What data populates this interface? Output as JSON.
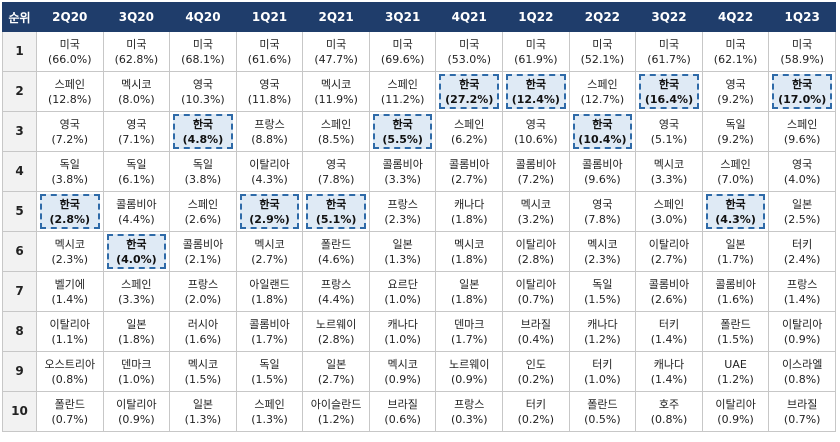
{
  "table": {
    "rank_header": "순위",
    "columns": [
      "2Q20",
      "3Q20",
      "4Q20",
      "1Q21",
      "2Q21",
      "3Q21",
      "4Q21",
      "1Q22",
      "2Q22",
      "3Q22",
      "4Q22",
      "1Q23"
    ],
    "highlight_country": "한국",
    "highlight_color": "#2e6aa8",
    "header_color": "#1f3d6b",
    "rows": [
      {
        "rank": "1",
        "cells": [
          [
            "미국",
            "(66.0%)"
          ],
          [
            "미국",
            "(62.8%)"
          ],
          [
            "미국",
            "(68.1%)"
          ],
          [
            "미국",
            "(61.6%)"
          ],
          [
            "미국",
            "(47.7%)"
          ],
          [
            "미국",
            "(69.6%)"
          ],
          [
            "미국",
            "(53.0%)"
          ],
          [
            "미국",
            "(61.9%)"
          ],
          [
            "미국",
            "(52.1%)"
          ],
          [
            "미국",
            "(61.7%)"
          ],
          [
            "미국",
            "(62.1%)"
          ],
          [
            "미국",
            "(58.9%)"
          ]
        ]
      },
      {
        "rank": "2",
        "cells": [
          [
            "스페인",
            "(12.8%)"
          ],
          [
            "멕시코",
            "(8.0%)"
          ],
          [
            "영국",
            "(10.3%)"
          ],
          [
            "영국",
            "(11.8%)"
          ],
          [
            "멕시코",
            "(11.9%)"
          ],
          [
            "스페인",
            "(11.2%)"
          ],
          [
            "한국",
            "(27.2%)"
          ],
          [
            "한국",
            "(12.4%)"
          ],
          [
            "스페인",
            "(12.7%)"
          ],
          [
            "한국",
            "(16.4%)"
          ],
          [
            "영국",
            "(9.2%)"
          ],
          [
            "한국",
            "(17.0%)"
          ]
        ]
      },
      {
        "rank": "3",
        "cells": [
          [
            "영국",
            "(7.2%)"
          ],
          [
            "영국",
            "(7.1%)"
          ],
          [
            "한국",
            "(4.8%)"
          ],
          [
            "프랑스",
            "(8.8%)"
          ],
          [
            "스페인",
            "(8.5%)"
          ],
          [
            "한국",
            "(5.5%)"
          ],
          [
            "스페인",
            "(6.2%)"
          ],
          [
            "영국",
            "(10.6%)"
          ],
          [
            "한국",
            "(10.4%)"
          ],
          [
            "영국",
            "(5.1%)"
          ],
          [
            "독일",
            "(9.2%)"
          ],
          [
            "스페인",
            "(9.6%)"
          ]
        ]
      },
      {
        "rank": "4",
        "cells": [
          [
            "독일",
            "(3.8%)"
          ],
          [
            "독일",
            "(6.1%)"
          ],
          [
            "독일",
            "(3.8%)"
          ],
          [
            "이탈리아",
            "(4.3%)"
          ],
          [
            "영국",
            "(7.8%)"
          ],
          [
            "콜롬비아",
            "(3.3%)"
          ],
          [
            "콜롬비아",
            "(2.7%)"
          ],
          [
            "콜롬비아",
            "(7.2%)"
          ],
          [
            "콜롬비아",
            "(9.6%)"
          ],
          [
            "멕시코",
            "(3.3%)"
          ],
          [
            "스페인",
            "(7.0%)"
          ],
          [
            "영국",
            "(4.0%)"
          ]
        ]
      },
      {
        "rank": "5",
        "cells": [
          [
            "한국",
            "(2.8%)"
          ],
          [
            "콜롬비아",
            "(4.4%)"
          ],
          [
            "스페인",
            "(2.6%)"
          ],
          [
            "한국",
            "(2.9%)"
          ],
          [
            "한국",
            "(5.1%)"
          ],
          [
            "프랑스",
            "(2.3%)"
          ],
          [
            "캐나다",
            "(1.8%)"
          ],
          [
            "멕시코",
            "(3.2%)"
          ],
          [
            "영국",
            "(7.8%)"
          ],
          [
            "스페인",
            "(3.0%)"
          ],
          [
            "한국",
            "(4.3%)"
          ],
          [
            "일본",
            "(2.5%)"
          ]
        ]
      },
      {
        "rank": "6",
        "cells": [
          [
            "멕시코",
            "(2.3%)"
          ],
          [
            "한국",
            "(4.0%)"
          ],
          [
            "콜롬비아",
            "(2.1%)"
          ],
          [
            "멕시코",
            "(2.7%)"
          ],
          [
            "폴란드",
            "(4.6%)"
          ],
          [
            "일본",
            "(1.3%)"
          ],
          [
            "멕시코",
            "(1.8%)"
          ],
          [
            "이탈리아",
            "(2.8%)"
          ],
          [
            "멕시코",
            "(2.3%)"
          ],
          [
            "이탈리아",
            "(2.7%)"
          ],
          [
            "일본",
            "(1.7%)"
          ],
          [
            "터키",
            "(2.4%)"
          ]
        ]
      },
      {
        "rank": "7",
        "cells": [
          [
            "벨기에",
            "(1.4%)"
          ],
          [
            "스페인",
            "(3.3%)"
          ],
          [
            "프랑스",
            "(2.0%)"
          ],
          [
            "아일랜드",
            "(1.8%)"
          ],
          [
            "프랑스",
            "(4.4%)"
          ],
          [
            "요르단",
            "(1.0%)"
          ],
          [
            "일본",
            "(1.8%)"
          ],
          [
            "이탈리아",
            "(0.7%)"
          ],
          [
            "독일",
            "(1.5%)"
          ],
          [
            "콜롬비아",
            "(2.6%)"
          ],
          [
            "콜롬비아",
            "(1.6%)"
          ],
          [
            "프랑스",
            "(1.4%)"
          ]
        ]
      },
      {
        "rank": "8",
        "cells": [
          [
            "이탈리아",
            "(1.1%)"
          ],
          [
            "일본",
            "(1.8%)"
          ],
          [
            "러시아",
            "(1.6%)"
          ],
          [
            "콜롬비아",
            "(1.7%)"
          ],
          [
            "노르웨이",
            "(2.8%)"
          ],
          [
            "캐나다",
            "(1.0%)"
          ],
          [
            "덴마크",
            "(1.7%)"
          ],
          [
            "브라질",
            "(0.4%)"
          ],
          [
            "캐나다",
            "(1.2%)"
          ],
          [
            "터키",
            "(1.4%)"
          ],
          [
            "폴란드",
            "(1.5%)"
          ],
          [
            "이탈리아",
            "(0.9%)"
          ]
        ]
      },
      {
        "rank": "9",
        "cells": [
          [
            "오스트리아",
            "(0.8%)"
          ],
          [
            "덴마크",
            "(1.0%)"
          ],
          [
            "멕시코",
            "(1.5%)"
          ],
          [
            "독일",
            "(1.5%)"
          ],
          [
            "일본",
            "(2.7%)"
          ],
          [
            "멕시코",
            "(0.9%)"
          ],
          [
            "노르웨이",
            "(0.9%)"
          ],
          [
            "인도",
            "(0.2%)"
          ],
          [
            "터키",
            "(1.0%)"
          ],
          [
            "캐나다",
            "(1.4%)"
          ],
          [
            "UAE",
            "(1.2%)"
          ],
          [
            "이스라엘",
            "(0.8%)"
          ]
        ]
      },
      {
        "rank": "10",
        "cells": [
          [
            "폴란드",
            "(0.7%)"
          ],
          [
            "이탈리아",
            "(0.9%)"
          ],
          [
            "일본",
            "(1.3%)"
          ],
          [
            "스페인",
            "(1.3%)"
          ],
          [
            "아이슬란드",
            "(1.2%)"
          ],
          [
            "브라질",
            "(0.6%)"
          ],
          [
            "프랑스",
            "(0.3%)"
          ],
          [
            "터키",
            "(0.2%)"
          ],
          [
            "폴란드",
            "(0.5%)"
          ],
          [
            "호주",
            "(0.8%)"
          ],
          [
            "이탈리아",
            "(0.9%)"
          ],
          [
            "브라질",
            "(0.7%)"
          ]
        ]
      }
    ]
  }
}
